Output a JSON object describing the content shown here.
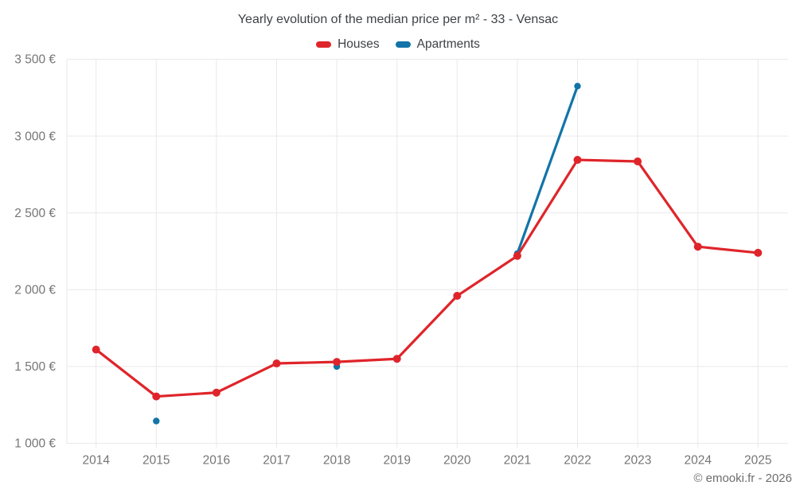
{
  "chart_data": {
    "type": "line",
    "title": "Yearly evolution of the median price per m² - 33 - Vensac",
    "x": [
      2014,
      2015,
      2016,
      2017,
      2018,
      2019,
      2020,
      2021,
      2022,
      2023,
      2024,
      2025
    ],
    "xlabel": "",
    "ylabel": "",
    "ylim": [
      1000,
      3500
    ],
    "y_ticks": [
      {
        "value": 1000,
        "label": "1 000 €"
      },
      {
        "value": 1500,
        "label": "1 500 €"
      },
      {
        "value": 2000,
        "label": "2 000 €"
      },
      {
        "value": 2500,
        "label": "2 500 €"
      },
      {
        "value": 3000,
        "label": "3 000 €"
      },
      {
        "value": 3500,
        "label": "3 500 €"
      }
    ],
    "grid": true,
    "legend_position": "top",
    "line_connect_rule": "consecutive-years-only",
    "series": [
      {
        "name": "Houses",
        "color": "#df252a",
        "values": [
          1610,
          1305,
          1330,
          1520,
          1530,
          1550,
          1960,
          2220,
          2845,
          2835,
          2280,
          2240
        ]
      },
      {
        "name": "Apartments",
        "color": "#1274a8",
        "values": [
          null,
          1145,
          null,
          null,
          1500,
          null,
          null,
          2235,
          3325,
          null,
          null,
          null
        ]
      }
    ],
    "grid_color": "#e9e9e9",
    "axis_label_color": "#757575"
  },
  "footer": {
    "copyright": "© emooki.fr - 2026"
  }
}
